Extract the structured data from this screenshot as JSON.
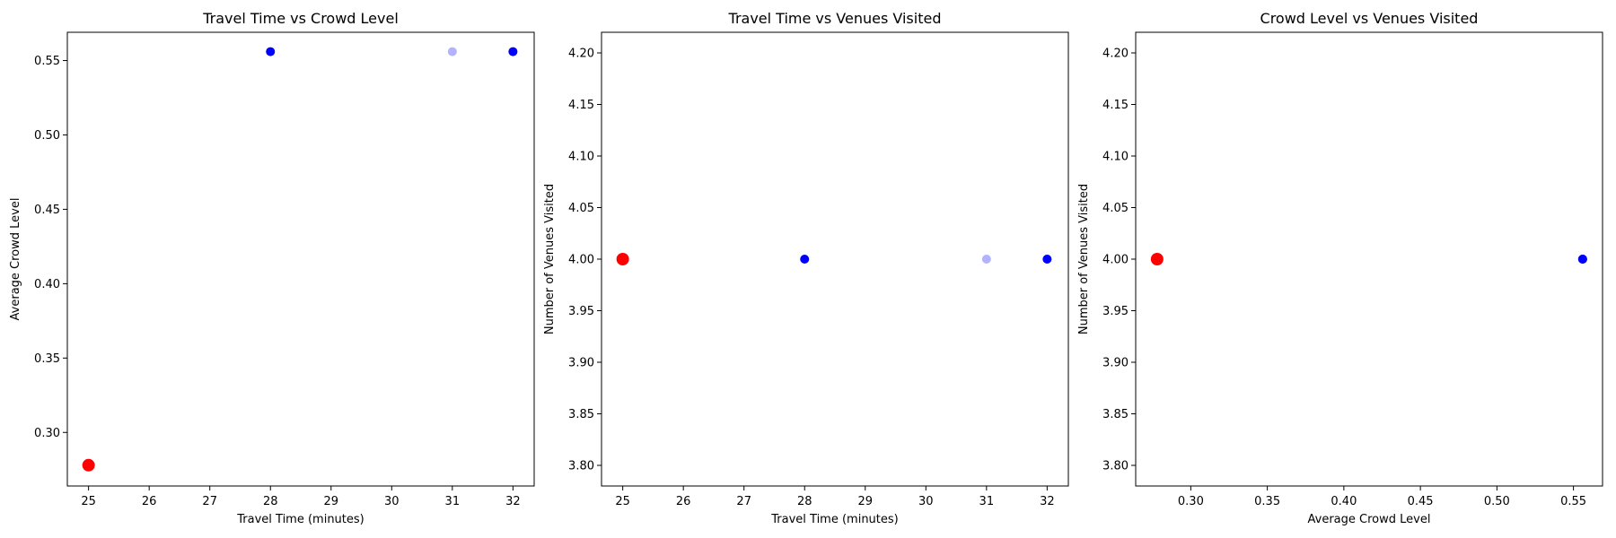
{
  "chart_data": [
    {
      "type": "scatter",
      "title": "Travel Time vs Crowd Level",
      "xlabel": "Travel Time (minutes)",
      "ylabel": "Average Crowd Level",
      "xlim": [
        24.65,
        32.35
      ],
      "ylim": [
        0.264,
        0.569
      ],
      "xticks": [
        "25",
        "26",
        "27",
        "28",
        "29",
        "30",
        "31",
        "32"
      ],
      "yticks": [
        "0.30",
        "0.35",
        "0.40",
        "0.45",
        "0.50",
        "0.55"
      ],
      "grid": false,
      "points": [
        {
          "x": 32,
          "y": 0.556,
          "color": "#0000ff",
          "opacity": 1.0,
          "highlight": false
        },
        {
          "x": 32,
          "y": 0.556,
          "color": "#0000ff",
          "opacity": 0.3,
          "highlight": false
        },
        {
          "x": 31,
          "y": 0.556,
          "color": "#0000ff",
          "opacity": 0.3,
          "highlight": false
        },
        {
          "x": 28,
          "y": 0.556,
          "color": "#0000ff",
          "opacity": 1.0,
          "highlight": false
        },
        {
          "x": 25,
          "y": 0.278,
          "color": "#ff0000",
          "opacity": 1.0,
          "highlight": true
        }
      ]
    },
    {
      "type": "scatter",
      "title": "Travel Time vs Venues Visited",
      "xlabel": "Travel Time (minutes)",
      "ylabel": "Number of Venues Visited",
      "xlim": [
        24.65,
        32.35
      ],
      "ylim": [
        3.78,
        4.22
      ],
      "xticks": [
        "25",
        "26",
        "27",
        "28",
        "29",
        "30",
        "31",
        "32"
      ],
      "yticks": [
        "3.80",
        "3.85",
        "3.90",
        "3.95",
        "4.00",
        "4.05",
        "4.10",
        "4.15",
        "4.20"
      ],
      "grid": false,
      "points": [
        {
          "x": 32,
          "y": 4.0,
          "color": "#0000ff",
          "opacity": 1.0,
          "highlight": false
        },
        {
          "x": 32,
          "y": 4.0,
          "color": "#0000ff",
          "opacity": 0.3,
          "highlight": false
        },
        {
          "x": 31,
          "y": 4.0,
          "color": "#0000ff",
          "opacity": 0.3,
          "highlight": false
        },
        {
          "x": 28,
          "y": 4.0,
          "color": "#0000ff",
          "opacity": 1.0,
          "highlight": false
        },
        {
          "x": 25,
          "y": 4.0,
          "color": "#ff0000",
          "opacity": 1.0,
          "highlight": true
        }
      ]
    },
    {
      "type": "scatter",
      "title": "Crowd Level vs Venues Visited",
      "xlabel": "Average Crowd Level",
      "ylabel": "Number of Venues Visited",
      "xlim": [
        0.264,
        0.569
      ],
      "ylim": [
        3.78,
        4.22
      ],
      "xticks": [
        "0.30",
        "0.35",
        "0.40",
        "0.45",
        "0.50",
        "0.55"
      ],
      "yticks": [
        "3.80",
        "3.85",
        "3.90",
        "3.95",
        "4.00",
        "4.05",
        "4.10",
        "4.15",
        "4.20"
      ],
      "grid": false,
      "points": [
        {
          "x": 0.556,
          "y": 4.0,
          "color": "#0000ff",
          "opacity": 1.0,
          "highlight": false
        },
        {
          "x": 0.556,
          "y": 4.0,
          "color": "#0000ff",
          "opacity": 0.3,
          "highlight": false
        },
        {
          "x": 0.556,
          "y": 4.0,
          "color": "#0000ff",
          "opacity": 0.3,
          "highlight": false
        },
        {
          "x": 0.556,
          "y": 4.0,
          "color": "#0000ff",
          "opacity": 1.0,
          "highlight": false
        },
        {
          "x": 0.278,
          "y": 4.0,
          "color": "#ff0000",
          "opacity": 1.0,
          "highlight": true
        }
      ]
    }
  ]
}
